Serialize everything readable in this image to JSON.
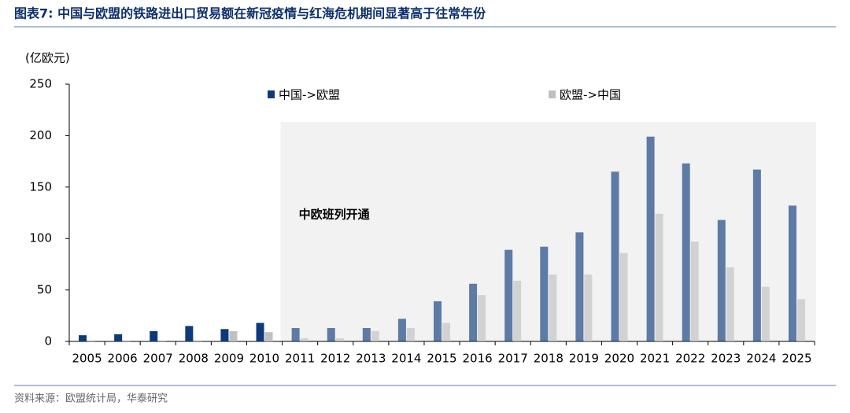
{
  "chart_data": {
    "type": "bar",
    "title": "图表7:  中国与欧盟的铁路进出口贸易额在新冠疫情与红海危机期间显著高于往常年份",
    "y_label": "(亿欧元)",
    "source": "资料来源：欧盟统计局，华泰研究",
    "categories": [
      "2005",
      "2006",
      "2007",
      "2008",
      "2009",
      "2010",
      "2011",
      "2012",
      "2013",
      "2014",
      "2015",
      "2016",
      "2017",
      "2018",
      "2019",
      "2020",
      "2021",
      "2022",
      "2023",
      "2024",
      "2025"
    ],
    "series": [
      {
        "name": "中国->欧盟",
        "color": "#0d3a7a",
        "values": [
          6,
          7,
          10,
          15,
          12,
          18,
          13,
          13,
          13,
          22,
          39,
          56,
          89,
          92,
          106,
          165,
          199,
          173,
          118,
          167,
          132
        ]
      },
      {
        "name": "欧盟->中国",
        "color": "#c0c0c0",
        "values": [
          1,
          1,
          1,
          1,
          10,
          9,
          3,
          3,
          10,
          13,
          18,
          45,
          59,
          65,
          65,
          86,
          124,
          97,
          72,
          53,
          41
        ]
      }
    ],
    "ylim": [
      0,
      250
    ],
    "yticks": [
      0,
      50,
      100,
      150,
      200,
      250
    ],
    "grid": false,
    "shaded_region": {
      "from": "2011",
      "to": "2025",
      "label": "中欧班列开通"
    }
  }
}
